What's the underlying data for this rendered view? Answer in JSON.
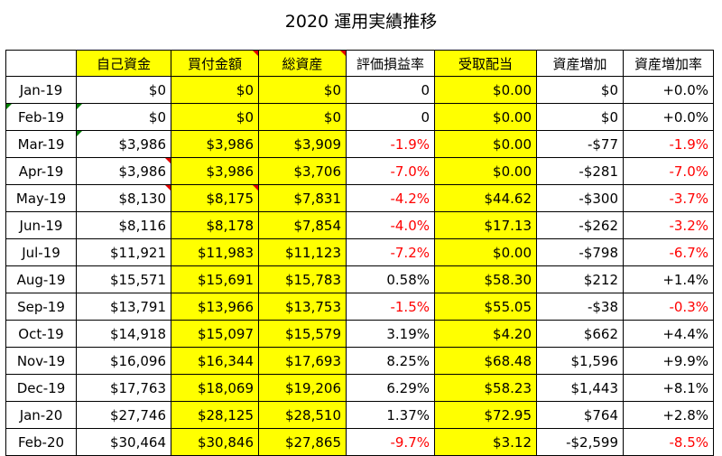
{
  "title": "2020 運用実績推移",
  "colors": {
    "highlight": "#ffff00",
    "negative": "#ff0000",
    "comment_marker": "#e00000",
    "note_marker": "#008000"
  },
  "chart_data": {
    "type": "table",
    "title": "2020 運用実績推移",
    "columns": [
      "",
      "自己資金",
      "買付金額",
      "総資産",
      "評価損益率",
      "受取配当",
      "資産増加",
      "資産増加率"
    ],
    "rows": [
      [
        "Jan-19",
        "$0",
        "$0",
        "$0",
        "0",
        "$0.00",
        "$0",
        "+0.0%"
      ],
      [
        "Feb-19",
        "$0",
        "$0",
        "$0",
        "0",
        "$0.00",
        "$0",
        "+0.0%"
      ],
      [
        "Mar-19",
        "$3,986",
        "$3,986",
        "$3,909",
        "-1.9%",
        "$0.00",
        "-$77",
        "-1.9%"
      ],
      [
        "Apr-19",
        "$3,986",
        "$3,986",
        "$3,706",
        "-7.0%",
        "$0.00",
        "-$281",
        "-7.0%"
      ],
      [
        "May-19",
        "$8,130",
        "$8,175",
        "$7,831",
        "-4.2%",
        "$44.62",
        "-$300",
        "-3.7%"
      ],
      [
        "Jun-19",
        "$8,116",
        "$8,178",
        "$7,854",
        "-4.0%",
        "$17.13",
        "-$262",
        "-3.2%"
      ],
      [
        "Jul-19",
        "$11,921",
        "$11,983",
        "$11,123",
        "-7.2%",
        "$0.00",
        "-$798",
        "-6.7%"
      ],
      [
        "Aug-19",
        "$15,571",
        "$15,691",
        "$15,783",
        "0.58%",
        "$58.30",
        "$212",
        "+1.4%"
      ],
      [
        "Sep-19",
        "$13,791",
        "$13,966",
        "$13,753",
        "-1.5%",
        "$55.05",
        "-$38",
        "-0.3%"
      ],
      [
        "Oct-19",
        "$14,918",
        "$15,097",
        "$15,579",
        "3.19%",
        "$4.20",
        "$662",
        "+4.4%"
      ],
      [
        "Nov-19",
        "$16,096",
        "$16,344",
        "$17,693",
        "8.25%",
        "$68.48",
        "$1,596",
        "+9.9%"
      ],
      [
        "Dec-19",
        "$17,763",
        "$18,069",
        "$19,206",
        "6.29%",
        "$58.23",
        "$1,443",
        "+8.1%"
      ],
      [
        "Jan-20",
        "$27,746",
        "$28,125",
        "$28,510",
        "1.37%",
        "$72.95",
        "$764",
        "+2.8%"
      ],
      [
        "Feb-20",
        "$30,464",
        "$30,846",
        "$27,865",
        "-9.7%",
        "$3.12",
        "-$2,599",
        "-8.5%"
      ]
    ]
  }
}
